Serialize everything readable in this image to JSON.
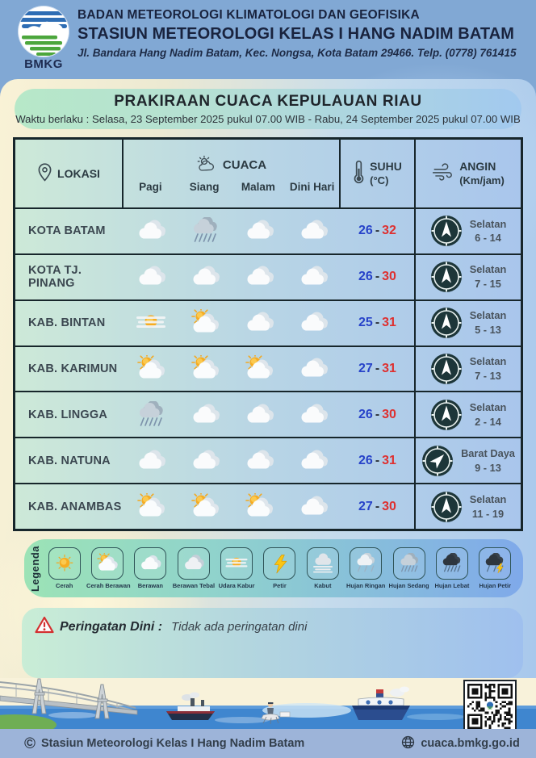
{
  "header": {
    "logo_text": "BMKG",
    "org_line1": "BADAN METEOROLOGI KLIMATOLOGI DAN GEOFISIKA",
    "org_line2": "STASIUN METEOROLOGI KELAS I HANG NADIM BATAM",
    "address": "Jl. Bandara Hang Nadim Batam, Kec. Nongsa, Kota Batam 29466.  Telp. (0778) 761415"
  },
  "title": {
    "main": "PRAKIRAAN CUACA KEPULAUAN RIAU",
    "validity": "Waktu berlaku : Selasa, 23 September 2025 pukul 07.00 WIB - Rabu, 24 September 2025 pukul 07.00 WIB"
  },
  "table": {
    "columns": {
      "lokasi": "LOKASI",
      "cuaca": "CUACA",
      "cuaca_sub": [
        "Pagi",
        "Siang",
        "Malam",
        "Dini Hari"
      ],
      "suhu": "SUHU",
      "suhu_unit": "(°C)",
      "angin": "ANGIN",
      "angin_unit": "(Km/jam)"
    },
    "temp_separator": "-",
    "rows": [
      {
        "lokasi": "KOTA BATAM",
        "cuaca": [
          "berawan",
          "hujan-sedang",
          "berawan",
          "berawan"
        ],
        "suhu_min": "26",
        "suhu_max": "32",
        "angin_arah": "Selatan",
        "angin_kecepatan": "6 - 14",
        "arrow_deg": 0
      },
      {
        "lokasi": "KOTA TJ. PINANG",
        "cuaca": [
          "berawan",
          "berawan",
          "berawan",
          "berawan"
        ],
        "suhu_min": "26",
        "suhu_max": "30",
        "angin_arah": "Selatan",
        "angin_kecepatan": "7 - 15",
        "arrow_deg": 0
      },
      {
        "lokasi": "KAB. BINTAN",
        "cuaca": [
          "udara-kabur",
          "cerah-berawan",
          "berawan",
          "berawan"
        ],
        "suhu_min": "25",
        "suhu_max": "31",
        "angin_arah": "Selatan",
        "angin_kecepatan": "5 - 13",
        "arrow_deg": 0
      },
      {
        "lokasi": "KAB. KARIMUN",
        "cuaca": [
          "cerah-berawan",
          "cerah-berawan",
          "cerah-berawan",
          "berawan"
        ],
        "suhu_min": "27",
        "suhu_max": "31",
        "angin_arah": "Selatan",
        "angin_kecepatan": "7 - 13",
        "arrow_deg": 0
      },
      {
        "lokasi": "KAB. LINGGA",
        "cuaca": [
          "hujan-sedang",
          "berawan",
          "berawan",
          "berawan"
        ],
        "suhu_min": "26",
        "suhu_max": "30",
        "angin_arah": "Selatan",
        "angin_kecepatan": "2 - 14",
        "arrow_deg": 0
      },
      {
        "lokasi": "KAB. NATUNA",
        "cuaca": [
          "berawan",
          "berawan",
          "berawan",
          "berawan"
        ],
        "suhu_min": "26",
        "suhu_max": "31",
        "angin_arah": "Barat Daya",
        "angin_kecepatan": "9 - 13",
        "arrow_deg": 45
      },
      {
        "lokasi": "KAB. ANAMBAS",
        "cuaca": [
          "cerah-berawan",
          "cerah-berawan",
          "cerah-berawan",
          "berawan"
        ],
        "suhu_min": "27",
        "suhu_max": "30",
        "angin_arah": "Selatan",
        "angin_kecepatan": "11 - 19",
        "arrow_deg": 0
      }
    ]
  },
  "legend": {
    "title": "Legenda",
    "items": [
      {
        "label": "Cerah",
        "icon": "cerah"
      },
      {
        "label": "Cerah Berawan",
        "icon": "cerah-berawan"
      },
      {
        "label": "Berawan",
        "icon": "berawan"
      },
      {
        "label": "Berawan Tebal",
        "icon": "berawan-tebal"
      },
      {
        "label": "Udara Kabur",
        "icon": "udara-kabur"
      },
      {
        "label": "Petir",
        "icon": "petir"
      },
      {
        "label": "Kabut",
        "icon": "kabut"
      },
      {
        "label": "Hujan Ringan",
        "icon": "hujan-ringan"
      },
      {
        "label": "Hujan Sedang",
        "icon": "hujan-sedang"
      },
      {
        "label": "Hujan Lebat",
        "icon": "hujan-lebat"
      },
      {
        "label": "Hujan Petir",
        "icon": "hujan-petir"
      }
    ]
  },
  "warning": {
    "label": "Peringatan Dini :",
    "text": "Tidak ada peringatan dini"
  },
  "footer": {
    "copyright": "Stasiun Meteorologi Kelas I Hang Nadim Batam",
    "website": "cuaca.bmkg.go.id"
  },
  "colors": {
    "temp_min": "#2743c9",
    "temp_max": "#de3030",
    "compass_bg": "#1d3639",
    "header_bg": "#81a8d4",
    "table_border": "#17262b"
  }
}
